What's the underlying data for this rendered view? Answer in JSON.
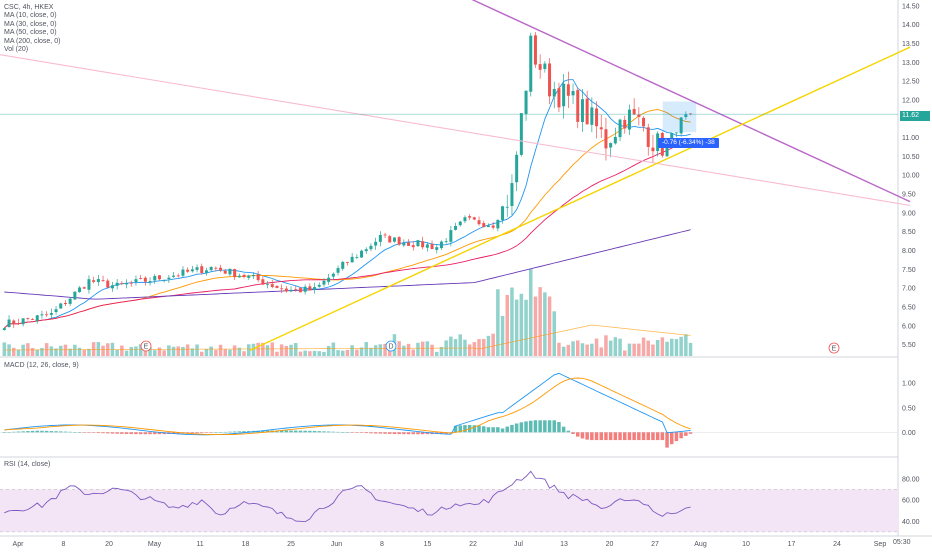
{
  "header": {
    "symbol_line": "CSC, 4h, HKEX",
    "indicators": [
      "MA (10, close, 0)",
      "MA (30, close, 0)",
      "MA (50, close, 0)",
      "MA (200, close, 0)",
      "Vol (20)"
    ]
  },
  "macd_title": "MACD (12, 26, close, 9)",
  "rsi_title": "RSI (14, close)",
  "current_price": "11.62",
  "measure_label": "-0.76 (-6.34%) -38",
  "time_tag": "05:30",
  "colors": {
    "up": "#26a69a",
    "down": "#ef5350",
    "ma10": "#2196f3",
    "ma30": "#ff9800",
    "ma50": "#e91e63",
    "ma200": "#673ab7",
    "trend_yellow": "#f5d400",
    "trend_purple": "#ba68c8",
    "trend_pink": "#f8bbd0",
    "macd_line": "#2196f3",
    "signal_line": "#ff9800",
    "rsi_line": "#7e57c2",
    "rsi_band": "#f3e5f5"
  },
  "chart_data": [
    {
      "type": "candlestick",
      "title": "CSC, 4h, HKEX",
      "ylim": [
        5.2,
        14.6
      ],
      "y_ticks": [
        "14.50",
        "14.00",
        "13.50",
        "13.00",
        "12.50",
        "12.00",
        "11.50",
        "11.00",
        "10.50",
        "10.00",
        "9.50",
        "9.00",
        "8.50",
        "8.00",
        "7.50",
        "7.00",
        "6.50",
        "6.00",
        "5.50"
      ],
      "x_ticks": [
        "Apr",
        "8",
        "20",
        "May",
        "11",
        "18",
        "25",
        "Jun",
        "8",
        "15",
        "22",
        "Jul",
        "13",
        "20",
        "27",
        "Aug",
        "10",
        "17",
        "24",
        "Sep"
      ],
      "events": [
        "E",
        "D",
        "E"
      ],
      "close_anchors": [
        [
          0,
          6.05
        ],
        [
          10,
          6.3
        ],
        [
          18,
          7.2
        ],
        [
          24,
          7.05
        ],
        [
          30,
          7.2
        ],
        [
          36,
          7.35
        ],
        [
          44,
          7.55
        ],
        [
          52,
          7.3
        ],
        [
          60,
          6.95
        ],
        [
          66,
          6.95
        ],
        [
          72,
          7.6
        ],
        [
          80,
          8.35
        ],
        [
          86,
          8.2
        ],
        [
          92,
          8.1
        ],
        [
          98,
          8.8
        ],
        [
          104,
          8.7
        ],
        [
          108,
          9.6
        ],
        [
          112,
          13.4
        ],
        [
          116,
          12.4
        ],
        [
          120,
          12.0
        ],
        [
          124,
          11.6
        ],
        [
          128,
          10.9
        ],
        [
          132,
          11.6
        ],
        [
          136,
          11.3
        ],
        [
          140,
          10.6
        ],
        [
          144,
          11.45
        ],
        [
          146,
          11.62
        ]
      ],
      "series": [
        {
          "name": "MA (10, close, 0)"
        },
        {
          "name": "MA (30, close, 0)"
        },
        {
          "name": "MA (50, close, 0)"
        },
        {
          "name": "MA (200, close, 0)"
        }
      ],
      "trendlines": [
        {
          "points": [
            [
              "Mar 11",
              13.2
            ],
            [
              "Sep 2",
              9.2
            ]
          ]
        },
        {
          "points": [
            [
              "Jul 1",
              14.9
            ],
            [
              "Sep 2",
              9.3
            ]
          ]
        },
        {
          "points": [
            [
              "May 25",
              5.35
            ],
            [
              "Sep 2",
              13.4
            ]
          ]
        }
      ],
      "last": 11.62
    },
    {
      "type": "bar",
      "title": "Vol (20)",
      "note": "volume histogram, relative units"
    },
    {
      "type": "line",
      "title": "MACD (12, 26, close, 9)",
      "ylim": [
        -0.4,
        1.35
      ],
      "y_ticks": [
        "1.00",
        "0.50",
        "0.00"
      ],
      "series": [
        {
          "name": "MACD"
        },
        {
          "name": "Signal"
        }
      ]
    },
    {
      "type": "line",
      "title": "RSI (14, close)",
      "ylim": [
        28,
        92
      ],
      "y_ticks": [
        "80.00",
        "60.00",
        "40.00"
      ],
      "band": [
        30,
        70
      ],
      "rsi_anchors": [
        [
          0,
          50
        ],
        [
          8,
          55
        ],
        [
          14,
          72
        ],
        [
          18,
          66
        ],
        [
          24,
          70
        ],
        [
          30,
          62
        ],
        [
          36,
          52
        ],
        [
          42,
          60
        ],
        [
          46,
          46
        ],
        [
          50,
          58
        ],
        [
          56,
          52
        ],
        [
          60,
          44
        ],
        [
          64,
          42
        ],
        [
          68,
          54
        ],
        [
          72,
          66
        ],
        [
          76,
          72
        ],
        [
          80,
          60
        ],
        [
          84,
          55
        ],
        [
          88,
          50
        ],
        [
          92,
          48
        ],
        [
          96,
          58
        ],
        [
          100,
          55
        ],
        [
          104,
          62
        ],
        [
          108,
          76
        ],
        [
          112,
          86
        ],
        [
          116,
          74
        ],
        [
          120,
          64
        ],
        [
          124,
          60
        ],
        [
          128,
          50
        ],
        [
          132,
          62
        ],
        [
          136,
          58
        ],
        [
          140,
          44
        ],
        [
          144,
          52
        ],
        [
          146,
          56
        ]
      ]
    }
  ]
}
